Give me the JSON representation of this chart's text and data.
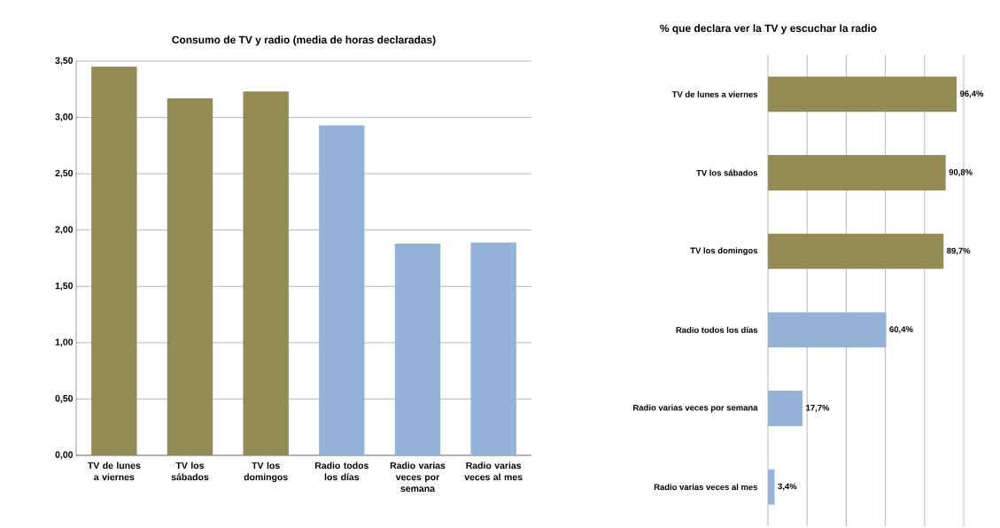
{
  "chart_data": [
    {
      "type": "bar",
      "title": "Consumo de TV y radio (media de horas declaradas)",
      "categories": [
        "TV de lunes a viernes",
        "TV los sábados",
        "TV los domingos",
        "Radio todos los días",
        "Radio varias veces por semana",
        "Radio varias veces al mes"
      ],
      "values": [
        3.45,
        3.17,
        3.23,
        2.93,
        1.88,
        1.89
      ],
      "colors": [
        "#948a54",
        "#948a54",
        "#948a54",
        "#95b3d7",
        "#95b3d7",
        "#95b3d7"
      ],
      "ylim": [
        0,
        3.5
      ],
      "yticks": [
        {
          "value": 0,
          "label": "0,00"
        },
        {
          "value": 0.5,
          "label": "0,50"
        },
        {
          "value": 1,
          "label": "1,00"
        },
        {
          "value": 1.5,
          "label": "1,50"
        },
        {
          "value": 2,
          "label": "2,00"
        },
        {
          "value": 2.5,
          "label": "2,50"
        },
        {
          "value": 3,
          "label": "3,00"
        },
        {
          "value": 3.5,
          "label": "3,50"
        }
      ],
      "grid": "y"
    },
    {
      "type": "bar",
      "orientation": "horizontal",
      "title": "% que declara ver la TV y escuchar la radio",
      "categories": [
        "TV de lunes a viernes",
        "TV los sábados",
        "TV los domingos",
        "Radio todos los días",
        "Radio varias veces por semana",
        "Radio varias veces al mes"
      ],
      "values": [
        96.4,
        90.8,
        89.7,
        60.4,
        17.7,
        3.4
      ],
      "value_labels": [
        "96,4%",
        "90,8%",
        "89,7%",
        "60,4%",
        "17,7%",
        "3,4%"
      ],
      "colors": [
        "#948a54",
        "#948a54",
        "#948a54",
        "#95b3d7",
        "#95b3d7",
        "#95b3d7"
      ],
      "xlim": [
        0,
        100
      ],
      "xticks": [
        {
          "value": 0,
          "label": null
        },
        {
          "value": 20,
          "label": null
        },
        {
          "value": 40,
          "label": null
        },
        {
          "value": 60,
          "label": null
        },
        {
          "value": 80,
          "label": null
        },
        {
          "value": 100,
          "label": null
        }
      ],
      "tick_labels": "y",
      "grid": "x"
    }
  ]
}
